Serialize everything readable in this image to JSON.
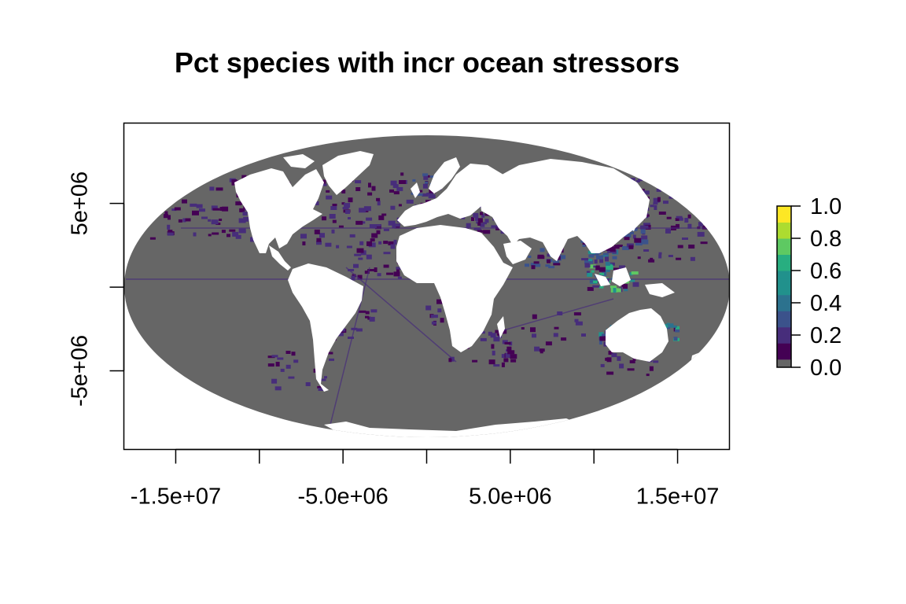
{
  "title": "Pct species with incr ocean stressors",
  "colors": {
    "no_data": "#666666",
    "land": "#ffffff",
    "frame": "#000000",
    "palette": [
      "#440154",
      "#472d7b",
      "#3b528b",
      "#2c728e",
      "#21918c",
      "#28ae80",
      "#5ec962",
      "#addc30",
      "#fde725"
    ]
  },
  "chart_data": {
    "type": "heatmap",
    "projection": "Mollweide",
    "title": "Pct species with incr ocean stressors",
    "xlabel": "",
    "ylabel": "",
    "xlim": [
      -18100000,
      18100000
    ],
    "ylim": [
      -9700000,
      9800000
    ],
    "x_ticks": [
      -15000000,
      -10000000,
      -5000000,
      0,
      5000000,
      10000000,
      15000000
    ],
    "x_tick_labels": [
      "-1.5e+07",
      "",
      "-5.0e+06",
      "",
      "5.0e+06",
      "",
      "1.5e+07"
    ],
    "y_ticks": [
      -5000000,
      0,
      5000000
    ],
    "y_tick_labels": [
      "-5e+06",
      "",
      "5e+06"
    ],
    "legend": {
      "position": "right",
      "range": [
        0,
        1
      ],
      "ticks": [
        0.0,
        0.2,
        0.4,
        0.6,
        0.8,
        1.0
      ],
      "tick_labels": [
        "0.0",
        "0.2",
        "0.4",
        "0.6",
        "0.8",
        "1.0"
      ]
    },
    "value_summary": "Mostly 0 (grey) in open ocean; low values 0.05-0.2 along coasts and shipping routes; higher values 0.4-0.7 around Southeast Asia, northern and western Australia"
  }
}
